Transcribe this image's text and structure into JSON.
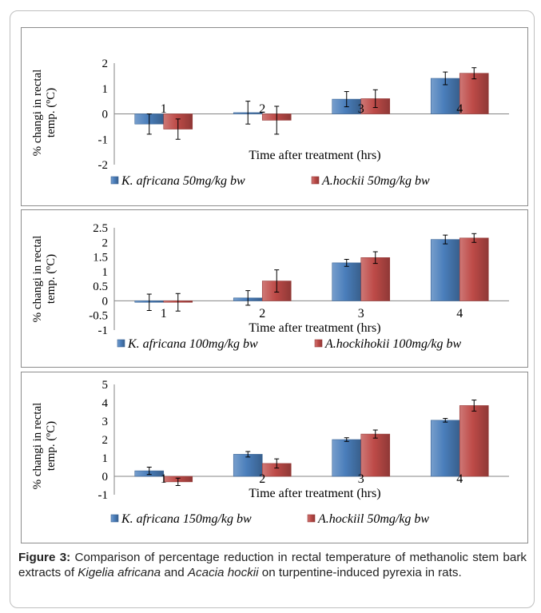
{
  "colors": {
    "series1": "#4A7EBB",
    "series2": "#BE4B48"
  },
  "charts": [
    {
      "chart_data": {
        "type": "bar",
        "categories": [
          "1",
          "2",
          "3",
          "4"
        ],
        "ylabel": "% changi in rectal temp. (ºC)",
        "xlabel": "Time after treatment (hrs)",
        "ylim": [
          -2,
          2
        ],
        "yticks": [
          -2,
          -1,
          0,
          1,
          2
        ],
        "grid": false,
        "legend_position": "bottom",
        "series": [
          {
            "name": "K. africana 50mg/kg bw",
            "values": [
              -0.4,
              0.05,
              0.58,
              1.4
            ],
            "errors": [
              0.4,
              0.45,
              0.3,
              0.25
            ]
          },
          {
            "name": "A.hockii 50mg/kg bw",
            "values": [
              -0.6,
              -0.25,
              0.6,
              1.6
            ],
            "errors": [
              0.4,
              0.55,
              0.35,
              0.22
            ]
          }
        ]
      }
    },
    {
      "chart_data": {
        "type": "bar",
        "categories": [
          "1",
          "2",
          "3",
          "4"
        ],
        "ylabel": "% changi in rectal temp. (ºC)",
        "xlabel": "Time after treatment (hrs)",
        "ylim": [
          -1,
          2.5
        ],
        "yticks": [
          -1,
          -0.5,
          0,
          0.5,
          1,
          1.5,
          2,
          2.5
        ],
        "grid": false,
        "legend_position": "bottom",
        "series": [
          {
            "name": "K. africana 100mg/kg bw",
            "values": [
              -0.05,
              0.1,
              1.3,
              2.1
            ],
            "errors": [
              0.28,
              0.25,
              0.12,
              0.15
            ]
          },
          {
            "name": "A.hockihokii 100mg/kg bw",
            "values": [
              -0.05,
              0.68,
              1.48,
              2.15
            ],
            "errors": [
              0.3,
              0.38,
              0.2,
              0.15
            ]
          }
        ]
      }
    },
    {
      "chart_data": {
        "type": "bar",
        "categories": [
          "1",
          "2",
          "3",
          "4"
        ],
        "ylabel": "% changi in rectal temp. (ºC)",
        "xlabel": "Time after treatment (hrs)",
        "ylim": [
          -1,
          5
        ],
        "yticks": [
          -1,
          0,
          1,
          2,
          3,
          4,
          5
        ],
        "grid": false,
        "legend_position": "bottom",
        "series": [
          {
            "name": "K. africana 150mg/kg bw",
            "values": [
              0.3,
              1.2,
              2.0,
              3.05
            ],
            "errors": [
              0.2,
              0.15,
              0.1,
              0.1
            ]
          },
          {
            "name": "A.hockiil 50mg/kg bw",
            "values": [
              -0.3,
              0.7,
              2.3,
              3.85
            ],
            "errors": [
              0.2,
              0.25,
              0.22,
              0.3
            ]
          }
        ]
      }
    }
  ],
  "caption": {
    "label": "Figure 3:",
    "text_a": " Comparison of percentage reduction in rectal temperature of methanolic stem bark extracts of ",
    "species_a": "Kigelia africana",
    "text_b": " and ",
    "species_b": "Acacia hockii",
    "text_c": " on turpentine-induced pyrexia in rats."
  }
}
